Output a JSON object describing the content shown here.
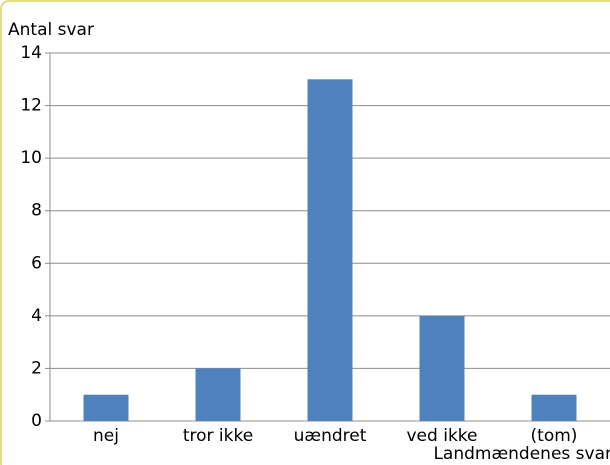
{
  "chart_data": {
    "type": "bar",
    "y_label": "Antal svar",
    "x_label": "Landmændenes svar",
    "categories": [
      "nej",
      "tror ikke",
      "uændret",
      "ved ikke",
      "(tom)"
    ],
    "values": [
      1,
      2,
      13,
      4,
      1
    ],
    "color": "#4f81bd",
    "ylim": [
      0,
      14
    ],
    "yticks": [
      0,
      2,
      4,
      6,
      8,
      10,
      12,
      14
    ],
    "grid": true
  }
}
